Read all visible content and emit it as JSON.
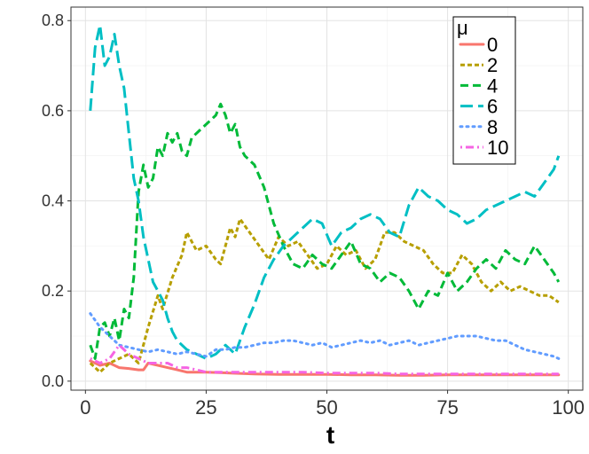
{
  "chart_data": {
    "type": "line",
    "title": "",
    "xlabel": "t",
    "ylabel": "",
    "xlim": [
      -3,
      103
    ],
    "ylim": [
      -0.02,
      0.83
    ],
    "x_ticks": [
      0,
      25,
      50,
      75,
      100
    ],
    "y_ticks": [
      0.0,
      0.2,
      0.4,
      0.6,
      0.8
    ],
    "x_tick_labels": [
      "0",
      "25",
      "50",
      "75",
      "100"
    ],
    "y_tick_labels": [
      "0.0",
      "0.2",
      "0.4",
      "0.6",
      "0.8"
    ],
    "grid": true,
    "legend": {
      "title": "μ",
      "position": "top-right"
    },
    "series": [
      {
        "name": "0",
        "color": "#F8766D",
        "dash": "solid",
        "points": [
          [
            1,
            0.045
          ],
          [
            3,
            0.035
          ],
          [
            5,
            0.04
          ],
          [
            7,
            0.03
          ],
          [
            9,
            0.028
          ],
          [
            11,
            0.025
          ],
          [
            12,
            0.025
          ],
          [
            13,
            0.04
          ],
          [
            15,
            0.035
          ],
          [
            17,
            0.03
          ],
          [
            19,
            0.025
          ],
          [
            21,
            0.02
          ],
          [
            25,
            0.02
          ],
          [
            30,
            0.018
          ],
          [
            35,
            0.016
          ],
          [
            40,
            0.015
          ],
          [
            45,
            0.015
          ],
          [
            50,
            0.015
          ],
          [
            55,
            0.014
          ],
          [
            60,
            0.014
          ],
          [
            65,
            0.013
          ],
          [
            70,
            0.013
          ],
          [
            75,
            0.014
          ],
          [
            80,
            0.014
          ],
          [
            85,
            0.014
          ],
          [
            90,
            0.014
          ],
          [
            95,
            0.014
          ],
          [
            98,
            0.014
          ]
        ]
      },
      {
        "name": "2",
        "color": "#B79F00",
        "dash": "short",
        "points": [
          [
            1,
            0.04
          ],
          [
            3,
            0.02
          ],
          [
            5,
            0.04
          ],
          [
            7,
            0.05
          ],
          [
            9,
            0.06
          ],
          [
            11,
            0.04
          ],
          [
            13,
            0.12
          ],
          [
            15,
            0.19
          ],
          [
            16,
            0.16
          ],
          [
            18,
            0.23
          ],
          [
            20,
            0.28
          ],
          [
            21,
            0.33
          ],
          [
            23,
            0.29
          ],
          [
            25,
            0.3
          ],
          [
            27,
            0.27
          ],
          [
            28,
            0.26
          ],
          [
            30,
            0.34
          ],
          [
            31,
            0.32
          ],
          [
            32,
            0.36
          ],
          [
            34,
            0.33
          ],
          [
            36,
            0.3
          ],
          [
            38,
            0.27
          ],
          [
            40,
            0.32
          ],
          [
            42,
            0.3
          ],
          [
            44,
            0.31
          ],
          [
            46,
            0.28
          ],
          [
            48,
            0.25
          ],
          [
            50,
            0.26
          ],
          [
            52,
            0.3
          ],
          [
            54,
            0.28
          ],
          [
            56,
            0.29
          ],
          [
            58,
            0.25
          ],
          [
            60,
            0.27
          ],
          [
            62,
            0.33
          ],
          [
            64,
            0.33
          ],
          [
            66,
            0.31
          ],
          [
            68,
            0.3
          ],
          [
            70,
            0.29
          ],
          [
            72,
            0.26
          ],
          [
            74,
            0.24
          ],
          [
            76,
            0.24
          ],
          [
            78,
            0.28
          ],
          [
            80,
            0.26
          ],
          [
            82,
            0.22
          ],
          [
            84,
            0.2
          ],
          [
            86,
            0.22
          ],
          [
            88,
            0.2
          ],
          [
            90,
            0.21
          ],
          [
            92,
            0.2
          ],
          [
            94,
            0.19
          ],
          [
            96,
            0.19
          ],
          [
            98,
            0.175
          ]
        ]
      },
      {
        "name": "4",
        "color": "#00BA38",
        "dash": "dashed",
        "points": [
          [
            1,
            0.08
          ],
          [
            2,
            0.05
          ],
          [
            3,
            0.12
          ],
          [
            4,
            0.13
          ],
          [
            5,
            0.1
          ],
          [
            6,
            0.14
          ],
          [
            7,
            0.09
          ],
          [
            8,
            0.16
          ],
          [
            9,
            0.14
          ],
          [
            10,
            0.23
          ],
          [
            11,
            0.42
          ],
          [
            12,
            0.48
          ],
          [
            13,
            0.43
          ],
          [
            14,
            0.45
          ],
          [
            15,
            0.52
          ],
          [
            16,
            0.5
          ],
          [
            17,
            0.55
          ],
          [
            18,
            0.53
          ],
          [
            19,
            0.55
          ],
          [
            20,
            0.51
          ],
          [
            21,
            0.5
          ],
          [
            22,
            0.54
          ],
          [
            24,
            0.56
          ],
          [
            26,
            0.58
          ],
          [
            27,
            0.59
          ],
          [
            28,
            0.615
          ],
          [
            29,
            0.59
          ],
          [
            30,
            0.55
          ],
          [
            31,
            0.57
          ],
          [
            32,
            0.52
          ],
          [
            33,
            0.5
          ],
          [
            35,
            0.48
          ],
          [
            37,
            0.43
          ],
          [
            39,
            0.35
          ],
          [
            41,
            0.3
          ],
          [
            43,
            0.26
          ],
          [
            45,
            0.25
          ],
          [
            47,
            0.28
          ],
          [
            49,
            0.26
          ],
          [
            51,
            0.25
          ],
          [
            53,
            0.28
          ],
          [
            55,
            0.31
          ],
          [
            57,
            0.26
          ],
          [
            59,
            0.25
          ],
          [
            61,
            0.22
          ],
          [
            63,
            0.24
          ],
          [
            65,
            0.23
          ],
          [
            67,
            0.2
          ],
          [
            69,
            0.16
          ],
          [
            71,
            0.2
          ],
          [
            73,
            0.19
          ],
          [
            75,
            0.24
          ],
          [
            77,
            0.2
          ],
          [
            79,
            0.22
          ],
          [
            81,
            0.25
          ],
          [
            83,
            0.27
          ],
          [
            85,
            0.25
          ],
          [
            87,
            0.29
          ],
          [
            89,
            0.27
          ],
          [
            91,
            0.26
          ],
          [
            93,
            0.3
          ],
          [
            95,
            0.27
          ],
          [
            97,
            0.24
          ],
          [
            98,
            0.22
          ]
        ]
      },
      {
        "name": "6",
        "color": "#00BFC4",
        "dash": "long",
        "points": [
          [
            1,
            0.6
          ],
          [
            2,
            0.74
          ],
          [
            3,
            0.79
          ],
          [
            4,
            0.7
          ],
          [
            5,
            0.72
          ],
          [
            6,
            0.77
          ],
          [
            7,
            0.7
          ],
          [
            8,
            0.65
          ],
          [
            9,
            0.55
          ],
          [
            10,
            0.45
          ],
          [
            11,
            0.4
          ],
          [
            12,
            0.32
          ],
          [
            13,
            0.27
          ],
          [
            14,
            0.22
          ],
          [
            15,
            0.2
          ],
          [
            16,
            0.18
          ],
          [
            17,
            0.14
          ],
          [
            18,
            0.11
          ],
          [
            19,
            0.09
          ],
          [
            21,
            0.07
          ],
          [
            23,
            0.06
          ],
          [
            25,
            0.05
          ],
          [
            27,
            0.06
          ],
          [
            29,
            0.08
          ],
          [
            31,
            0.06
          ],
          [
            33,
            0.12
          ],
          [
            35,
            0.17
          ],
          [
            37,
            0.23
          ],
          [
            39,
            0.27
          ],
          [
            41,
            0.3
          ],
          [
            43,
            0.32
          ],
          [
            45,
            0.34
          ],
          [
            47,
            0.36
          ],
          [
            49,
            0.35
          ],
          [
            51,
            0.3
          ],
          [
            53,
            0.33
          ],
          [
            55,
            0.34
          ],
          [
            57,
            0.36
          ],
          [
            59,
            0.37
          ],
          [
            61,
            0.36
          ],
          [
            63,
            0.33
          ],
          [
            65,
            0.32
          ],
          [
            67,
            0.39
          ],
          [
            69,
            0.43
          ],
          [
            71,
            0.41
          ],
          [
            73,
            0.4
          ],
          [
            75,
            0.38
          ],
          [
            77,
            0.37
          ],
          [
            79,
            0.35
          ],
          [
            81,
            0.36
          ],
          [
            83,
            0.38
          ],
          [
            85,
            0.39
          ],
          [
            87,
            0.4
          ],
          [
            89,
            0.41
          ],
          [
            91,
            0.42
          ],
          [
            93,
            0.41
          ],
          [
            95,
            0.44
          ],
          [
            97,
            0.47
          ],
          [
            98,
            0.5
          ]
        ]
      },
      {
        "name": "8",
        "color": "#619CFF",
        "dash": "dotted",
        "points": [
          [
            1,
            0.15
          ],
          [
            3,
            0.12
          ],
          [
            5,
            0.1
          ],
          [
            7,
            0.08
          ],
          [
            9,
            0.075
          ],
          [
            11,
            0.07
          ],
          [
            13,
            0.065
          ],
          [
            15,
            0.07
          ],
          [
            17,
            0.065
          ],
          [
            19,
            0.06
          ],
          [
            21,
            0.065
          ],
          [
            23,
            0.06
          ],
          [
            25,
            0.055
          ],
          [
            27,
            0.07
          ],
          [
            29,
            0.07
          ],
          [
            31,
            0.075
          ],
          [
            33,
            0.075
          ],
          [
            35,
            0.08
          ],
          [
            37,
            0.085
          ],
          [
            39,
            0.085
          ],
          [
            41,
            0.09
          ],
          [
            43,
            0.09
          ],
          [
            45,
            0.085
          ],
          [
            47,
            0.08
          ],
          [
            49,
            0.085
          ],
          [
            51,
            0.075
          ],
          [
            53,
            0.08
          ],
          [
            55,
            0.085
          ],
          [
            57,
            0.09
          ],
          [
            59,
            0.085
          ],
          [
            61,
            0.09
          ],
          [
            63,
            0.08
          ],
          [
            65,
            0.085
          ],
          [
            67,
            0.09
          ],
          [
            69,
            0.08
          ],
          [
            71,
            0.085
          ],
          [
            73,
            0.09
          ],
          [
            75,
            0.095
          ],
          [
            77,
            0.1
          ],
          [
            79,
            0.1
          ],
          [
            81,
            0.1
          ],
          [
            83,
            0.095
          ],
          [
            85,
            0.09
          ],
          [
            87,
            0.09
          ],
          [
            89,
            0.08
          ],
          [
            91,
            0.07
          ],
          [
            93,
            0.065
          ],
          [
            95,
            0.06
          ],
          [
            97,
            0.055
          ],
          [
            98,
            0.05
          ]
        ]
      },
      {
        "name": "10",
        "color": "#F564E3",
        "dash": "dotdash",
        "points": [
          [
            1,
            0.05
          ],
          [
            3,
            0.04
          ],
          [
            5,
            0.05
          ],
          [
            7,
            0.08
          ],
          [
            9,
            0.06
          ],
          [
            11,
            0.05
          ],
          [
            13,
            0.04
          ],
          [
            15,
            0.04
          ],
          [
            17,
            0.04
          ],
          [
            19,
            0.03
          ],
          [
            21,
            0.03
          ],
          [
            23,
            0.025
          ],
          [
            25,
            0.02
          ],
          [
            30,
            0.02
          ],
          [
            35,
            0.02
          ],
          [
            40,
            0.02
          ],
          [
            45,
            0.02
          ],
          [
            50,
            0.018
          ],
          [
            55,
            0.018
          ],
          [
            60,
            0.018
          ],
          [
            65,
            0.016
          ],
          [
            70,
            0.016
          ],
          [
            75,
            0.016
          ],
          [
            80,
            0.016
          ],
          [
            85,
            0.016
          ],
          [
            90,
            0.016
          ],
          [
            95,
            0.016
          ],
          [
            98,
            0.016
          ]
        ]
      }
    ]
  }
}
